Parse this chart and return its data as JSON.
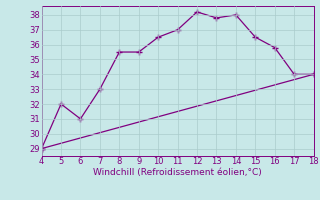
{
  "x": [
    4,
    5,
    6,
    7,
    8,
    9,
    10,
    11,
    12,
    13,
    14,
    15,
    16,
    17,
    18
  ],
  "y": [
    29,
    32,
    31,
    33,
    35.5,
    35.5,
    36.5,
    37,
    38.2,
    37.8,
    38,
    36.5,
    35.8,
    34,
    34
  ],
  "line_x": [
    4,
    18
  ],
  "line_y": [
    29,
    34
  ],
  "color": "#800080",
  "bg_color": "#c8e8e8",
  "grid_color": "#aacccc",
  "xlabel": "Windchill (Refroidissement éolien,°C)",
  "xlim": [
    4,
    18
  ],
  "ylim": [
    28.5,
    38.6
  ],
  "yticks": [
    29,
    30,
    31,
    32,
    33,
    34,
    35,
    36,
    37,
    38
  ],
  "xticks": [
    4,
    5,
    6,
    7,
    8,
    9,
    10,
    11,
    12,
    13,
    14,
    15,
    16,
    17,
    18
  ],
  "fontsize_label": 6.5,
  "fontsize_tick": 6.0,
  "marker": "+",
  "markersize": 4,
  "linewidth": 0.9
}
